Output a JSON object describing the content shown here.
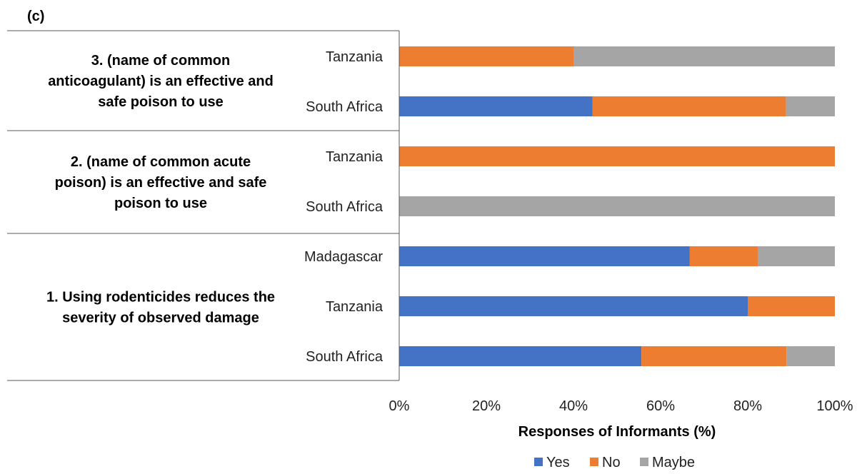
{
  "panel_label": "(c)",
  "chart_data": {
    "type": "bar",
    "orientation": "horizontal",
    "stacked": true,
    "xlabel": "Responses of Informants (%)",
    "xlim": [
      0,
      100
    ],
    "xticks": [
      "0%",
      "20%",
      "40%",
      "60%",
      "80%",
      "100%"
    ],
    "grid": false,
    "legend_position": "bottom",
    "colors": {
      "Yes": "#4472C4",
      "No": "#ED7D31",
      "Maybe": "#A5A5A5"
    },
    "legend": [
      "Yes",
      "No",
      "Maybe"
    ],
    "groups": [
      {
        "label": "3. (name of common anticoagulant) is an effective and safe poison to use",
        "label_lines": [
          "3. (name of common",
          "anticoagulant) is an effective and",
          "safe poison to use"
        ],
        "bars": [
          {
            "country": "Tanzania",
            "yes": 0,
            "no": 40,
            "maybe": 60
          },
          {
            "country": "South Africa",
            "yes": 44.4,
            "no": 44.4,
            "maybe": 11.2
          }
        ]
      },
      {
        "label": "2. (name of common acute poison) is an effective and safe poison to use",
        "label_lines": [
          "2. (name of common acute",
          "poison) is an effective and safe",
          "poison to use"
        ],
        "bars": [
          {
            "country": "Tanzania",
            "yes": 0,
            "no": 100,
            "maybe": 0
          },
          {
            "country": "South Africa",
            "yes": 0,
            "no": 0,
            "maybe": 100
          }
        ]
      },
      {
        "label": "1. Using rodenticides reduces the severity of observed damage",
        "label_lines": [
          "1. Using rodenticides reduces the",
          "severity of observed damage"
        ],
        "bars": [
          {
            "country": "Madagascar",
            "yes": 66.7,
            "no": 15.7,
            "maybe": 17.6
          },
          {
            "country": "Tanzania",
            "yes": 80,
            "no": 20,
            "maybe": 0
          },
          {
            "country": "South Africa",
            "yes": 55.6,
            "no": 33.3,
            "maybe": 11.1
          }
        ]
      }
    ]
  }
}
